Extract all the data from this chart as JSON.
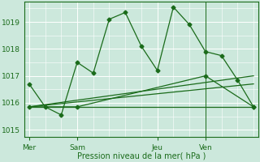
{
  "background_color": "#cce8dc",
  "grid_color": "#ffffff",
  "line_color": "#1a6b1a",
  "x_ticks_labels": [
    "Mer",
    "Sam",
    "Jeu",
    "Ven"
  ],
  "x_ticks_pos": [
    0,
    3,
    8,
    11
  ],
  "xlabel": "Pression niveau de la mer( hPa )",
  "ylim": [
    1014.75,
    1019.75
  ],
  "yticks": [
    1015,
    1016,
    1017,
    1018,
    1019
  ],
  "line1_x": [
    0,
    1,
    2,
    3,
    4,
    5,
    6,
    7,
    8,
    9,
    10,
    11,
    12,
    13,
    14
  ],
  "line1_y": [
    1016.7,
    1015.85,
    1015.55,
    1017.5,
    1017.1,
    1019.1,
    1019.35,
    1018.1,
    1017.2,
    1019.55,
    1018.9,
    1017.9,
    1017.75,
    1016.85,
    1015.85
  ],
  "line2_x": [
    0,
    14
  ],
  "line2_y": [
    1015.85,
    1015.85
  ],
  "line3_x": [
    0,
    14
  ],
  "line3_y": [
    1015.85,
    1017.0
  ],
  "line4_x": [
    0,
    14
  ],
  "line4_y": [
    1015.85,
    1016.7
  ],
  "line5_x": [
    0,
    3,
    11,
    14
  ],
  "line5_y": [
    1015.85,
    1015.85,
    1017.0,
    1015.85
  ],
  "vline_x": 11,
  "xlim": [
    -0.3,
    14.3
  ],
  "figsize": [
    3.2,
    2.0
  ],
  "dpi": 100
}
